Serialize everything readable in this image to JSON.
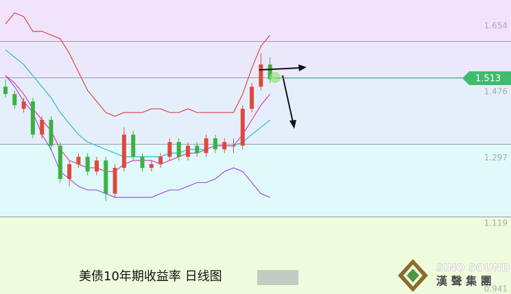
{
  "chart_data": {
    "type": "candlestick",
    "title": "美债10年期收益率  日线图",
    "open": [
      1.49,
      1.47,
      1.43,
      1.45,
      1.36,
      1.4,
      1.33,
      1.24,
      1.28,
      1.3,
      1.26,
      1.29,
      1.2,
      1.27,
      1.36,
      1.3,
      1.27,
      1.28,
      1.3,
      1.34,
      1.3,
      1.33,
      1.31,
      1.35,
      1.32,
      1.33,
      1.33,
      1.43,
      1.49,
      1.55
    ],
    "high": [
      1.51,
      1.48,
      1.46,
      1.46,
      1.41,
      1.41,
      1.34,
      1.29,
      1.31,
      1.31,
      1.3,
      1.3,
      1.28,
      1.38,
      1.37,
      1.31,
      1.29,
      1.31,
      1.35,
      1.35,
      1.34,
      1.34,
      1.36,
      1.36,
      1.35,
      1.35,
      1.44,
      1.5,
      1.58,
      1.57
    ],
    "low": [
      1.46,
      1.43,
      1.42,
      1.35,
      1.35,
      1.32,
      1.23,
      1.22,
      1.27,
      1.25,
      1.25,
      1.18,
      1.19,
      1.26,
      1.29,
      1.26,
      1.26,
      1.27,
      1.29,
      1.29,
      1.29,
      1.3,
      1.3,
      1.31,
      1.31,
      1.31,
      1.32,
      1.42,
      1.48,
      1.5
    ],
    "close": [
      1.47,
      1.44,
      1.45,
      1.36,
      1.4,
      1.33,
      1.24,
      1.28,
      1.3,
      1.26,
      1.29,
      1.2,
      1.27,
      1.36,
      1.3,
      1.27,
      1.28,
      1.3,
      1.34,
      1.3,
      1.33,
      1.31,
      1.35,
      1.32,
      1.34,
      1.33,
      1.43,
      1.49,
      1.55,
      1.51
    ],
    "up_color": "#e0483c",
    "down_color": "#3cb043",
    "lines": [
      {
        "color": "#d9473f",
        "values": [
          1.66,
          1.69,
          1.68,
          1.64,
          1.64,
          1.63,
          1.62,
          1.58,
          1.53,
          1.48,
          1.45,
          1.42,
          1.41,
          1.42,
          1.42,
          1.42,
          1.43,
          1.43,
          1.42,
          1.42,
          1.43,
          1.42,
          1.42,
          1.42,
          1.42,
          1.42,
          1.47,
          1.54,
          1.6,
          1.63
        ]
      },
      {
        "color": "#2bb5e0",
        "values": [
          1.59,
          1.57,
          1.55,
          1.52,
          1.49,
          1.46,
          1.42,
          1.39,
          1.36,
          1.34,
          1.33,
          1.32,
          1.31,
          1.3,
          1.3,
          1.3,
          1.3,
          1.3,
          1.31,
          1.31,
          1.32,
          1.32,
          1.32,
          1.33,
          1.33,
          1.33,
          1.34,
          1.36,
          1.38,
          1.4
        ]
      },
      {
        "color": "#a64de0",
        "values": [
          1.52,
          1.49,
          1.45,
          1.42,
          1.36,
          1.32,
          1.26,
          1.24,
          1.22,
          1.21,
          1.21,
          1.2,
          1.19,
          1.19,
          1.19,
          1.19,
          1.19,
          1.2,
          1.21,
          1.21,
          1.22,
          1.23,
          1.23,
          1.24,
          1.26,
          1.27,
          1.26,
          1.23,
          1.2,
          1.19
        ]
      },
      {
        "color": "#e03ab4",
        "values": [
          1.52,
          1.5,
          1.47,
          1.43,
          1.4,
          1.37,
          1.32,
          1.29,
          1.28,
          1.27,
          1.27,
          1.26,
          1.26,
          1.28,
          1.29,
          1.29,
          1.29,
          1.28,
          1.29,
          1.3,
          1.31,
          1.31,
          1.32,
          1.33,
          1.33,
          1.33,
          1.36,
          1.4,
          1.44,
          1.47
        ]
      }
    ],
    "last_price": 1.513,
    "last_price_color": "#3dbb6e",
    "ylim": [
      0.928,
      1.725
    ],
    "yticks": [
      1.654,
      1.476,
      1.297,
      1.119,
      0.941
    ]
  },
  "logo": {
    "name": "SINO SOUND",
    "subtitle": "漢 聲 集 團"
  }
}
